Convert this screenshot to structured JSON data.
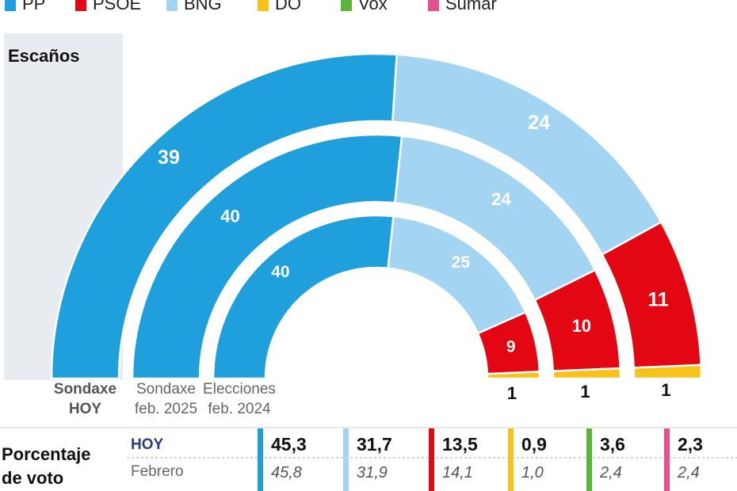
{
  "legend": [
    {
      "party": "PP",
      "color": "#1f9fdc"
    },
    {
      "party": "PSOE",
      "color": "#e30613"
    },
    {
      "party": "BNG",
      "color": "#a3d5f2"
    },
    {
      "party": "DO",
      "color": "#f9c21b"
    },
    {
      "party": "Vox",
      "color": "#5bb53a"
    },
    {
      "party": "Sumar",
      "color": "#e5508f"
    }
  ],
  "chart_data": {
    "type": "semicircle-donut",
    "title": "Escaños",
    "rings": [
      {
        "label_line1": "Sondaxe",
        "label_line2": "HOY",
        "seats": [
          {
            "party": "PP",
            "value": 39
          },
          {
            "party": "BNG",
            "value": 24
          },
          {
            "party": "PSOE",
            "value": 11
          },
          {
            "party": "DO",
            "value": 1
          }
        ]
      },
      {
        "label_line1": "Sondaxe",
        "label_line2": "feb. 2025",
        "seats": [
          {
            "party": "PP",
            "value": 40
          },
          {
            "party": "BNG",
            "value": 24
          },
          {
            "party": "PSOE",
            "value": 10
          },
          {
            "party": "DO",
            "value": 1
          }
        ]
      },
      {
        "label_line1": "Elecciones",
        "label_line2": "feb. 2024",
        "seats": [
          {
            "party": "PP",
            "value": 40
          },
          {
            "party": "BNG",
            "value": 25
          },
          {
            "party": "PSOE",
            "value": 9
          },
          {
            "party": "DO",
            "value": 1
          }
        ]
      }
    ],
    "vote_share": {
      "title_line1": "Porcentaje",
      "title_line2": "de voto",
      "row1_label": "HOY",
      "row2_label": "Febrero",
      "parties": [
        {
          "party": "PP",
          "now": "45,3",
          "prev": "45,8"
        },
        {
          "party": "BNG",
          "now": "31,7",
          "prev": "31,9"
        },
        {
          "party": "PSOE",
          "now": "13,5",
          "prev": "14,1"
        },
        {
          "party": "DO",
          "now": "0,9",
          "prev": "1,0"
        },
        {
          "party": "Vox",
          "now": "3,6",
          "prev": "2,4"
        },
        {
          "party": "Sumar",
          "now": "2,3",
          "prev": "2,4"
        }
      ]
    }
  }
}
